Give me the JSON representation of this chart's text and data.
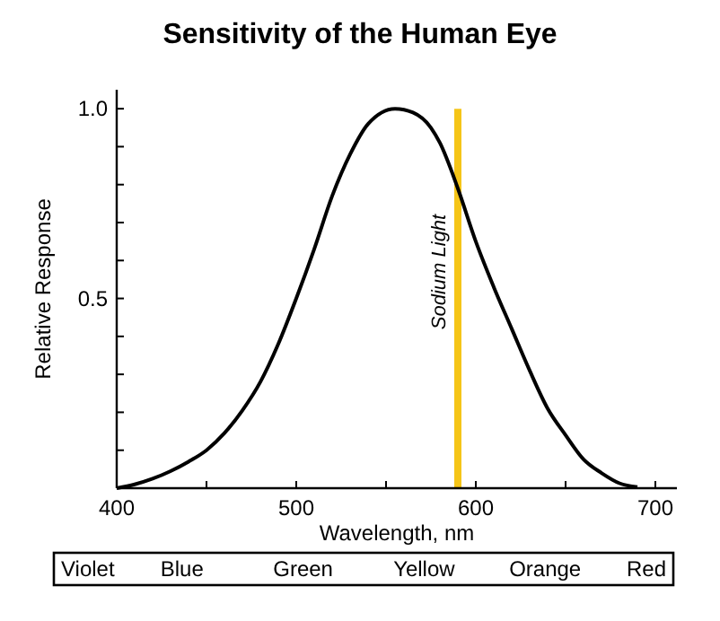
{
  "chart_data": {
    "type": "line",
    "title": "Sensitivity of the Human Eye",
    "xlabel": "Wavelength, nm",
    "ylabel": "Relative Response",
    "x": [
      400,
      410,
      420,
      430,
      440,
      450,
      460,
      470,
      480,
      490,
      500,
      510,
      520,
      530,
      540,
      555,
      565,
      575,
      580,
      590,
      600,
      610,
      620,
      630,
      640,
      650,
      660,
      670,
      680,
      690
    ],
    "series": [
      {
        "color": "#000000",
        "values": [
          0,
          0.01,
          0.025,
          0.045,
          0.07,
          0.1,
          0.145,
          0.205,
          0.28,
          0.38,
          0.5,
          0.63,
          0.77,
          0.88,
          0.96,
          1.0,
          0.99,
          0.95,
          0.91,
          0.79,
          0.65,
          0.53,
          0.42,
          0.31,
          0.21,
          0.14,
          0.076,
          0.04,
          0.013,
          0.003
        ]
      }
    ],
    "xlim": [
      400,
      712
    ],
    "ylim": [
      0,
      1.05
    ],
    "xticks": [
      400,
      {
        "value": 450,
        "label": null
      },
      500,
      {
        "value": 550,
        "label": null
      },
      600,
      {
        "value": 650,
        "label": null
      },
      700
    ],
    "yticks": [
      {
        "value": 0.1,
        "label": null
      },
      {
        "value": 0.2,
        "label": null
      },
      {
        "value": 0.3,
        "label": null
      },
      {
        "value": 0.4,
        "label": null
      },
      0.5,
      {
        "value": 0.6,
        "label": null
      },
      {
        "value": 0.7,
        "label": null
      },
      {
        "value": 0.8,
        "label": null
      },
      {
        "value": 0.9,
        "label": null
      },
      {
        "value": 1.0,
        "label": "1.0"
      }
    ],
    "ref_lines": [
      {
        "axis": "x",
        "value": 590,
        "label": "Sodium Light",
        "color": "#f5c518"
      }
    ],
    "annotations": [
      "Violet",
      "Blue",
      "Green",
      "Yellow",
      "Orange",
      "Red"
    ],
    "grid": false,
    "line_style": "solid"
  }
}
